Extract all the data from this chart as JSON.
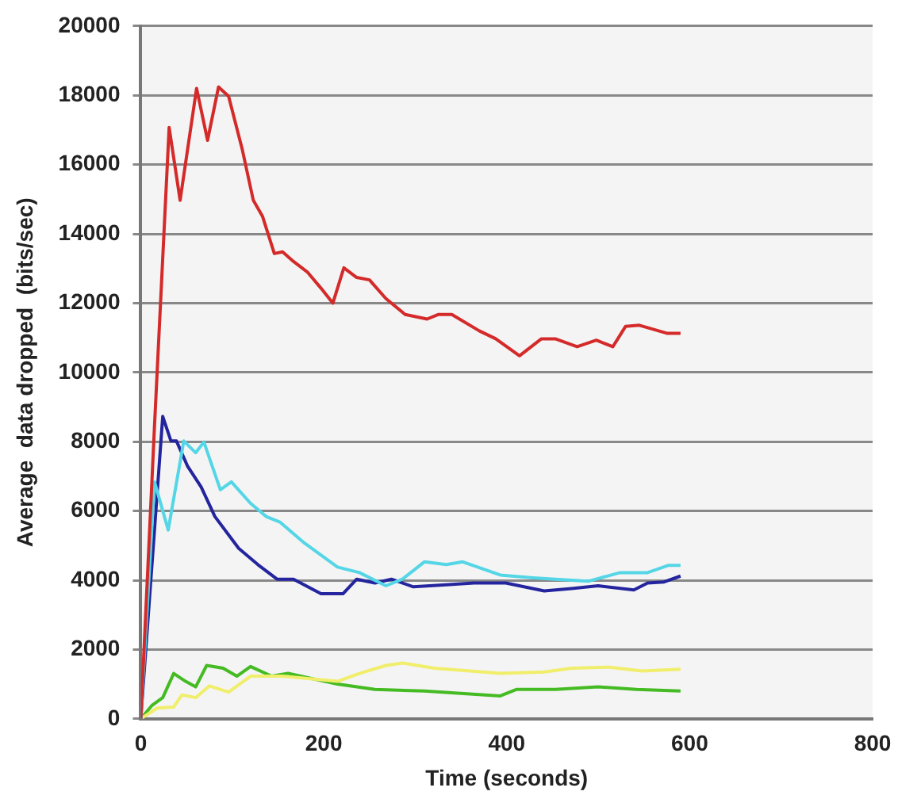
{
  "chart_data": {
    "type": "line",
    "xlabel": "Time (seconds)",
    "ylabel": "Average  data dropped  (bits/sec)",
    "xlim": [
      0,
      800
    ],
    "xticks": [
      0,
      200,
      400,
      600,
      800
    ],
    "ylim": [
      0,
      20000
    ],
    "yticks": [
      0,
      2000,
      4000,
      6000,
      8000,
      10000,
      12000,
      14000,
      16000,
      18000,
      20000
    ],
    "grid": "y",
    "legend": false,
    "marker": "none",
    "line_style": "solid",
    "series": [
      {
        "color": "#d42a2a",
        "x": [
          0,
          15,
          31,
          43,
          61,
          73,
          85,
          96,
          111,
          123,
          133,
          146,
          155,
          167,
          182,
          197,
          210,
          222,
          236,
          250,
          268,
          289,
          313,
          325,
          340,
          370,
          388,
          414,
          438,
          453,
          477,
          498,
          516,
          530,
          545,
          575,
          590
        ],
        "values": [
          0,
          8450,
          17070,
          14970,
          18200,
          16700,
          18240,
          17970,
          16430,
          14970,
          14510,
          13430,
          13480,
          13200,
          12900,
          12430,
          12000,
          13020,
          12740,
          12670,
          12130,
          11670,
          11540,
          11670,
          11670,
          11200,
          10970,
          10480,
          10970,
          10970,
          10740,
          10930,
          10740,
          11330,
          11360,
          11130,
          11130
        ]
      },
      {
        "color": "#55d6e6",
        "x": [
          0,
          15,
          30,
          47,
          60,
          69,
          87,
          99,
          120,
          137,
          152,
          179,
          215,
          239,
          268,
          286,
          310,
          334,
          352,
          393,
          429,
          453,
          489,
          524,
          554,
          577,
          590
        ],
        "values": [
          0,
          6840,
          5450,
          8020,
          7680,
          7990,
          6610,
          6840,
          6220,
          5840,
          5680,
          5070,
          4380,
          4220,
          3840,
          4030,
          4530,
          4450,
          4530,
          4150,
          4070,
          4030,
          3970,
          4220,
          4220,
          4430,
          4430
        ]
      },
      {
        "color": "#24249e",
        "x": [
          0,
          24,
          33,
          39,
          51,
          66,
          81,
          107,
          128,
          149,
          167,
          197,
          221,
          236,
          256,
          274,
          298,
          334,
          364,
          399,
          441,
          471,
          500,
          539,
          554,
          572,
          590
        ],
        "values": [
          0,
          8730,
          8020,
          8020,
          7300,
          6690,
          5840,
          4920,
          4450,
          4030,
          4030,
          3610,
          3610,
          4030,
          3920,
          4030,
          3810,
          3870,
          3920,
          3920,
          3690,
          3760,
          3840,
          3720,
          3920,
          3950,
          4120
        ]
      },
      {
        "color": "#f0ee6a",
        "x": [
          0,
          18,
          36,
          45,
          60,
          75,
          96,
          120,
          155,
          215,
          239,
          268,
          286,
          321,
          393,
          441,
          471,
          512,
          548,
          590
        ],
        "values": [
          0,
          310,
          340,
          690,
          610,
          950,
          770,
          1230,
          1230,
          1080,
          1310,
          1540,
          1610,
          1460,
          1310,
          1350,
          1460,
          1490,
          1380,
          1430
        ]
      },
      {
        "color": "#44bb22",
        "x": [
          0,
          12,
          24,
          36,
          49,
          60,
          72,
          90,
          105,
          120,
          143,
          161,
          215,
          256,
          310,
          393,
          411,
          453,
          500,
          542,
          590
        ],
        "values": [
          0,
          380,
          610,
          1310,
          1080,
          920,
          1540,
          1460,
          1230,
          1510,
          1230,
          1310,
          1000,
          850,
          800,
          660,
          850,
          850,
          920,
          850,
          800
        ]
      }
    ]
  }
}
